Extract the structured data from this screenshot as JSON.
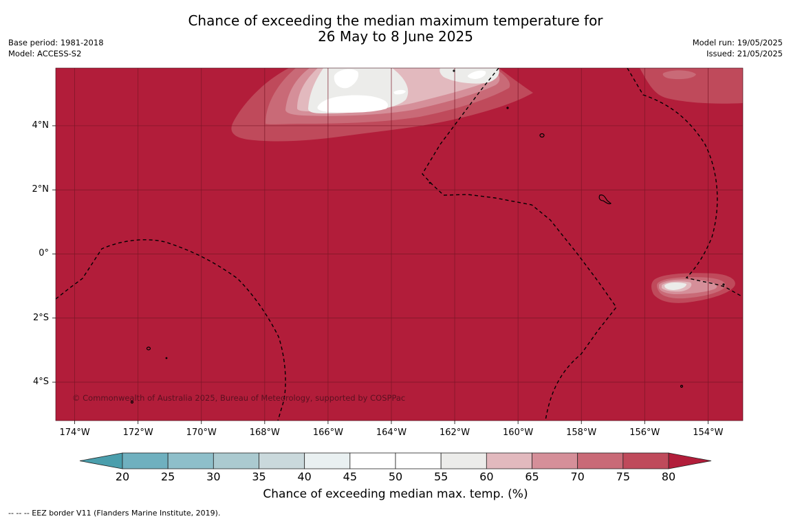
{
  "title": {
    "line1": "Chance of exceeding the median maximum temperature for",
    "line2": "26 May to 8 June 2025"
  },
  "info_left": {
    "base_period": "Base period: 1981-2018",
    "model": "Model: ACCESS-S2"
  },
  "info_right": {
    "model_run": "Model run: 19/05/2025",
    "issued": "Issued: 21/05/2025"
  },
  "map": {
    "lon_range": [
      -174.6,
      -152.9
    ],
    "lat_range": [
      -5.2,
      5.8
    ],
    "background_color": "#b21d3a",
    "grid_color": "#7a1626",
    "copyright": "© Commonwealth of Australia 2025, Bureau of Meteorology, supported by COSPPac",
    "lat_ticks": [
      {
        "value": 4,
        "label": "4°N"
      },
      {
        "value": 2,
        "label": "2°N"
      },
      {
        "value": 0,
        "label": "0°"
      },
      {
        "value": -2,
        "label": "2°S"
      },
      {
        "value": -4,
        "label": "4°S"
      }
    ],
    "lon_ticks": [
      {
        "value": -174,
        "label": "174°W"
      },
      {
        "value": -172,
        "label": "172°W"
      },
      {
        "value": -170,
        "label": "170°W"
      },
      {
        "value": -168,
        "label": "168°W"
      },
      {
        "value": -166,
        "label": "166°W"
      },
      {
        "value": -164,
        "label": "164°W"
      },
      {
        "value": -162,
        "label": "162°W"
      },
      {
        "value": -160,
        "label": "160°W"
      },
      {
        "value": -158,
        "label": "158°W"
      },
      {
        "value": -156,
        "label": "156°W"
      },
      {
        "value": -154,
        "label": "154°W"
      }
    ]
  },
  "colorbar": {
    "title": "Chance of exceeding median max. temp. (%)",
    "under_color": "#4a9eac",
    "over_color": "#b21d3a",
    "bins": [
      {
        "from": 20,
        "to": 25,
        "color": "#6fb0bf"
      },
      {
        "from": 25,
        "to": 30,
        "color": "#8ebfca"
      },
      {
        "from": 30,
        "to": 35,
        "color": "#abcad0"
      },
      {
        "from": 35,
        "to": 40,
        "color": "#cad9dc"
      },
      {
        "from": 40,
        "to": 45,
        "color": "#e9f0f1"
      },
      {
        "from": 45,
        "to": 50,
        "color": "#ffffff"
      },
      {
        "from": 50,
        "to": 55,
        "color": "#ffffff"
      },
      {
        "from": 55,
        "to": 60,
        "color": "#ececea"
      },
      {
        "from": 60,
        "to": 65,
        "color": "#e2b9be"
      },
      {
        "from": 65,
        "to": 70,
        "color": "#d58f99"
      },
      {
        "from": 70,
        "to": 75,
        "color": "#c96a77"
      },
      {
        "from": 75,
        "to": 80,
        "color": "#bf4a5b"
      }
    ],
    "labels": [
      "20",
      "25",
      "30",
      "35",
      "40",
      "45",
      "50",
      "55",
      "60",
      "65",
      "70",
      "75",
      "80"
    ]
  },
  "footnote": "--  --  -- EEZ border V11 (Flanders Marine Institute, 2019)."
}
